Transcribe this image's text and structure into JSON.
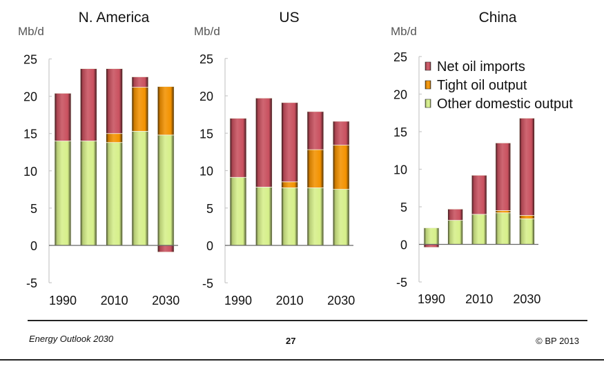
{
  "chart_data": [
    {
      "type": "bar",
      "stacked": true,
      "title": "N. America",
      "ylabel": "Mb/d",
      "xlabel": "",
      "ylim": [
        -5,
        25
      ],
      "yticks": [
        25,
        20,
        15,
        10,
        5,
        0,
        -5
      ],
      "categories": [
        "1990",
        "2000",
        "2010",
        "2020",
        "2030"
      ],
      "xtick_labels": [
        "1990",
        "2010",
        "2030"
      ],
      "series": [
        {
          "name": "Other domestic output",
          "values": [
            14.0,
            14.0,
            13.8,
            15.3,
            14.8
          ]
        },
        {
          "name": "Tight oil output",
          "values": [
            0.0,
            0.0,
            1.2,
            5.9,
            6.5
          ]
        },
        {
          "name": "Net oil imports",
          "values": [
            6.4,
            9.7,
            8.7,
            1.4,
            -0.9
          ]
        }
      ],
      "legend": null,
      "grid": false
    },
    {
      "type": "bar",
      "stacked": true,
      "title": "US",
      "ylabel": "Mb/d",
      "xlabel": "",
      "ylim": [
        -5,
        25
      ],
      "yticks": [
        25,
        20,
        15,
        10,
        5,
        0,
        -5
      ],
      "categories": [
        "1990",
        "2000",
        "2010",
        "2020",
        "2030"
      ],
      "xtick_labels": [
        "1990",
        "2010",
        "2030"
      ],
      "series": [
        {
          "name": "Other domestic output",
          "values": [
            9.1,
            7.8,
            7.7,
            7.7,
            7.5
          ]
        },
        {
          "name": "Tight oil output",
          "values": [
            0.0,
            0.0,
            0.8,
            5.1,
            5.9
          ]
        },
        {
          "name": "Net oil imports",
          "values": [
            7.9,
            11.9,
            10.6,
            5.1,
            3.2
          ]
        }
      ],
      "legend": null,
      "grid": false
    },
    {
      "type": "bar",
      "stacked": true,
      "title": "China",
      "ylabel": "Mb/d",
      "xlabel": "",
      "ylim": [
        -5,
        25
      ],
      "yticks": [
        25,
        20,
        15,
        10,
        5,
        0,
        -5
      ],
      "categories": [
        "1990",
        "2000",
        "2010",
        "2020",
        "2030"
      ],
      "xtick_labels": [
        "1990",
        "2010",
        "2030"
      ],
      "series": [
        {
          "name": "Other domestic output",
          "values": [
            2.2,
            3.2,
            4.0,
            4.2,
            3.4
          ]
        },
        {
          "name": "Tight oil output",
          "values": [
            0.0,
            0.0,
            0.0,
            0.3,
            0.45
          ]
        },
        {
          "name": "Net oil imports",
          "values": [
            -0.4,
            1.5,
            5.2,
            9.0,
            12.95
          ]
        }
      ],
      "legend": {
        "position": "top-left",
        "entries": [
          "Net oil imports",
          "Tight oil output",
          "Other domestic output"
        ]
      },
      "grid": false
    }
  ],
  "colors": {
    "Net oil imports": "#c9515f",
    "Tight oil output": "#f39200",
    "Other domestic output": "#d6ef8a"
  },
  "footer": {
    "left": "Energy Outlook 2030",
    "page": "27",
    "right": "© BP 2013"
  }
}
